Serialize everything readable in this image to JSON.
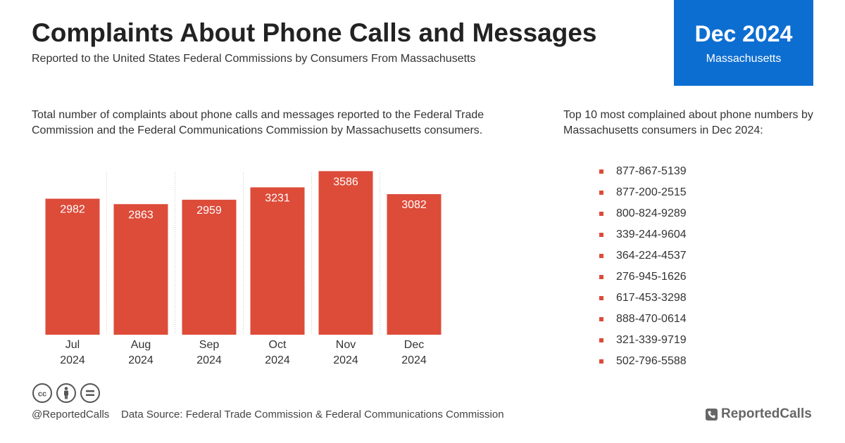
{
  "header": {
    "title": "Complaints About Phone Calls and Messages",
    "subtitle": "Reported to the United States Federal Commissions by Consumers From Massachusetts"
  },
  "date_box": {
    "date": "Dec 2024",
    "region": "Massachusetts",
    "color": "#0d6ed1"
  },
  "chart_description": "Total number of complaints about phone calls and messages reported to the Federal Trade Commission and the Federal Communications Commission by Massachusetts consumers.",
  "chart_data": {
    "type": "bar",
    "categories": [
      [
        "Jul",
        "2024"
      ],
      [
        "Aug",
        "2024"
      ],
      [
        "Sep",
        "2024"
      ],
      [
        "Oct",
        "2024"
      ],
      [
        "Nov",
        "2024"
      ],
      [
        "Dec",
        "2024"
      ]
    ],
    "values": [
      2982,
      2863,
      2959,
      3231,
      3586,
      3082
    ],
    "value_labels": [
      "2982",
      "2863",
      "2959",
      "3231",
      "3586",
      "3082"
    ],
    "bar_color": "#dd4b39",
    "ylim": [
      0,
      3700
    ],
    "grid": "vertical dotted separators"
  },
  "top_numbers": {
    "description": "Top 10 most complained about phone numbers by Massachusetts consumers in Dec 2024:",
    "items": [
      "877-867-5139",
      "877-200-2515",
      "800-824-9289",
      "339-244-9604",
      "364-224-4537",
      "276-945-1626",
      "617-453-3298",
      "888-470-0614",
      "321-339-9719",
      "502-796-5588"
    ],
    "bullet_color": "#dd4b39"
  },
  "footer": {
    "license_icons": [
      "cc-icon",
      "by-icon",
      "nd-icon"
    ],
    "handle": "@ReportedCalls",
    "source": "Data Source: Federal Trade Commission & Federal Communications Commission",
    "brand": "ReportedCalls",
    "brand_icon": "phone-icon"
  }
}
